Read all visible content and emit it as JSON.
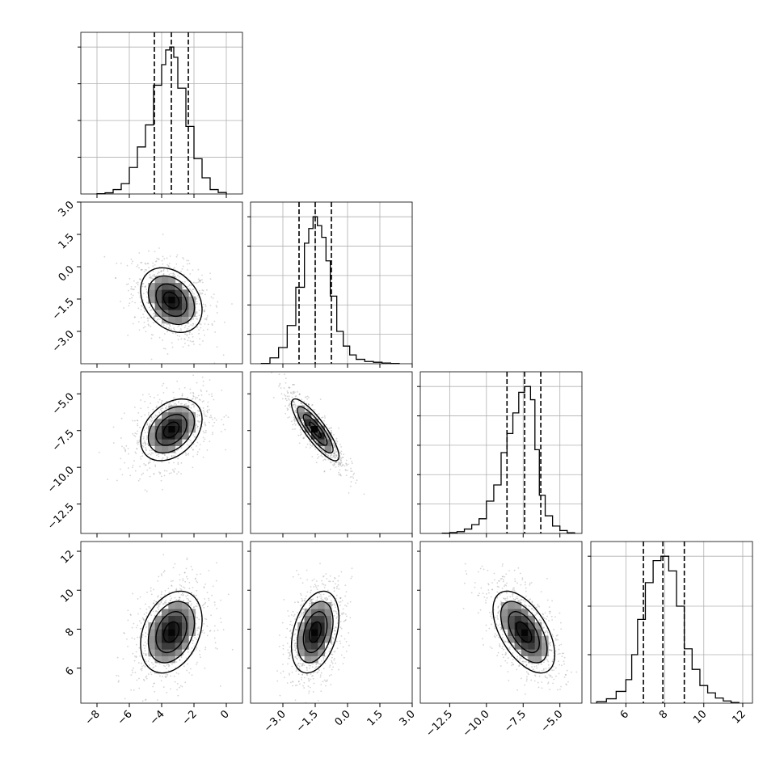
{
  "chart_data": {
    "type": "corner",
    "title": "",
    "parameters": [
      {
        "index": 0,
        "range": [
          -9,
          1
        ],
        "ticks": [
          -8,
          -6,
          -4,
          -2,
          0
        ],
        "tick_labels": [
          "−8",
          "−6",
          "−4",
          "−2",
          "0"
        ],
        "quantiles": [
          -4.45,
          -3.4,
          -2.35
        ]
      },
      {
        "index": 1,
        "range": [
          -4.5,
          3.0
        ],
        "ticks": [
          -3.0,
          -1.5,
          0.0,
          1.5,
          3.0
        ],
        "tick_labels": [
          "−3.0",
          "−1.5",
          "0.0",
          "1.5",
          "3.0"
        ],
        "quantiles": [
          -2.25,
          -1.5,
          -0.75
        ]
      },
      {
        "index": 2,
        "range": [
          -14.5,
          -3.5
        ],
        "ticks": [
          -12.5,
          -10.0,
          -7.5,
          -5.0
        ],
        "tick_labels": [
          "−12.5",
          "−10.0",
          "−7.5",
          "−5.0"
        ],
        "quantiles": [
          -8.6,
          -7.4,
          -6.3
        ]
      },
      {
        "index": 3,
        "range": [
          4.2,
          12.5
        ],
        "ticks": [
          6,
          8,
          10,
          12
        ],
        "tick_labels": [
          "6",
          "8",
          "10",
          "12"
        ],
        "quantiles": [
          6.9,
          7.9,
          9.0
        ]
      }
    ],
    "histograms": [
      {
        "param": 0,
        "bin_edges": [
          -8.0,
          -7.5,
          -7.0,
          -6.5,
          -6.0,
          -5.5,
          -5.0,
          -4.5,
          -4.0,
          -3.75,
          -3.5,
          -3.25,
          -3.0,
          -2.5,
          -2.0,
          -1.5,
          -1.0,
          -0.5,
          0.0
        ],
        "counts": [
          0.002,
          0.008,
          0.03,
          0.07,
          0.18,
          0.32,
          0.47,
          0.74,
          0.88,
          0.98,
          1.0,
          0.93,
          0.72,
          0.46,
          0.24,
          0.11,
          0.03,
          0.01
        ],
        "ylim": [
          0,
          1.1
        ],
        "ticks": [
          0.25,
          0.5,
          0.75,
          1.0
        ]
      },
      {
        "param": 1,
        "bin_edges": [
          -4.0,
          -3.6,
          -3.2,
          -2.8,
          -2.4,
          -2.0,
          -1.8,
          -1.6,
          -1.4,
          -1.2,
          -1.0,
          -0.8,
          -0.5,
          -0.2,
          0.1,
          0.4,
          0.8,
          1.2,
          1.6,
          2.0,
          2.4
        ],
        "counts": [
          0.002,
          0.04,
          0.11,
          0.26,
          0.52,
          0.82,
          0.92,
          1.0,
          0.94,
          0.86,
          0.7,
          0.46,
          0.22,
          0.12,
          0.06,
          0.03,
          0.015,
          0.01,
          0.005,
          0.002
        ],
        "ylim": [
          0,
          1.1
        ],
        "ticks": [
          0.2,
          0.4,
          0.6,
          0.8,
          1.0
        ]
      },
      {
        "param": 2,
        "bin_edges": [
          -13.0,
          -12.5,
          -12.0,
          -11.5,
          -11.0,
          -10.5,
          -10.0,
          -9.5,
          -9.0,
          -8.6,
          -8.2,
          -7.8,
          -7.4,
          -7.0,
          -6.7,
          -6.4,
          -6.0,
          -5.5,
          -5.0,
          -4.5,
          -4.0
        ],
        "counts": [
          0.002,
          0.006,
          0.012,
          0.03,
          0.06,
          0.1,
          0.22,
          0.33,
          0.55,
          0.68,
          0.82,
          0.96,
          1.0,
          0.91,
          0.57,
          0.26,
          0.12,
          0.05,
          0.02,
          0.005
        ],
        "ylim": [
          0,
          1.1
        ],
        "ticks": [
          0.2,
          0.4,
          0.6,
          0.8,
          1.0
        ]
      },
      {
        "param": 3,
        "bin_edges": [
          4.5,
          5.0,
          5.5,
          6.0,
          6.3,
          6.6,
          7.0,
          7.4,
          7.8,
          8.2,
          8.6,
          9.0,
          9.4,
          9.8,
          10.2,
          10.6,
          11.0,
          11.4,
          11.8
        ],
        "counts": [
          0.01,
          0.03,
          0.08,
          0.16,
          0.33,
          0.57,
          0.82,
          0.97,
          1.0,
          0.9,
          0.66,
          0.37,
          0.23,
          0.12,
          0.07,
          0.035,
          0.015,
          0.005
        ],
        "ylim": [
          0,
          1.1
        ],
        "ticks": [
          0.33,
          0.66,
          1.0
        ]
      }
    ],
    "pairs": [
      {
        "x": 0,
        "y": 1,
        "center": [
          -3.4,
          -1.55
        ],
        "sigma": [
          0.95,
          0.75
        ],
        "rho": -0.3
      },
      {
        "x": 0,
        "y": 2,
        "center": [
          -3.4,
          -7.45
        ],
        "sigma": [
          0.95,
          1.05
        ],
        "rho": 0.35
      },
      {
        "x": 1,
        "y": 2,
        "center": [
          -1.5,
          -7.45
        ],
        "sigma": [
          0.55,
          1.05
        ],
        "rho": -0.85
      },
      {
        "x": 0,
        "y": 3,
        "center": [
          -3.4,
          7.85
        ],
        "sigma": [
          0.95,
          1.05
        ],
        "rho": 0.3
      },
      {
        "x": 1,
        "y": 3,
        "center": [
          -1.5,
          7.85
        ],
        "sigma": [
          0.55,
          1.05
        ],
        "rho": 0.35
      },
      {
        "x": 2,
        "y": 3,
        "center": [
          -7.45,
          7.85
        ],
        "sigma": [
          1.05,
          1.05
        ],
        "rho": -0.55
      }
    ],
    "contour_levels": [
      0.5,
      1.0,
      1.5,
      2.0
    ],
    "colors": {
      "hist_line": "#000000",
      "contour": "#000000",
      "points": "#888888",
      "grid": "#b0b0b0"
    }
  }
}
